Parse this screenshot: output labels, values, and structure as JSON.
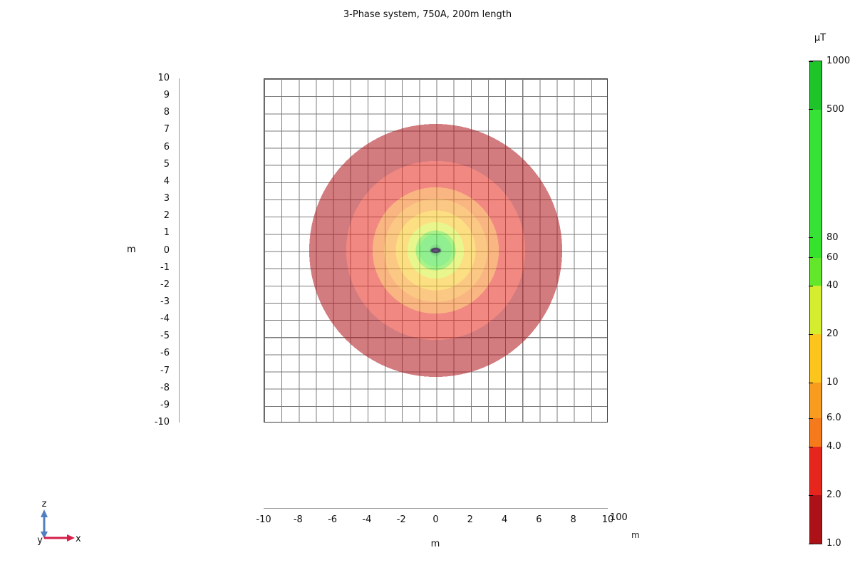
{
  "title": "3-Phase system, 750A, 200m length",
  "axes": {
    "y": {
      "unit": "m",
      "ticks": [
        "10",
        "9",
        "8",
        "7",
        "6",
        "5",
        "4",
        "3",
        "2",
        "1",
        "0",
        "-1",
        "-2",
        "-3",
        "-4",
        "-5",
        "-6",
        "-7",
        "-8",
        "-9",
        "-10"
      ]
    },
    "x": {
      "unit": "m",
      "ticks": [
        "-10",
        "-8",
        "-6",
        "-4",
        "-2",
        "0",
        "2",
        "4",
        "6",
        "8",
        "10"
      ]
    },
    "depth": {
      "label": "100",
      "unit": "m"
    }
  },
  "triad": {
    "x": "x",
    "y": "y",
    "z": "z"
  },
  "colorbar": {
    "unit": "µT",
    "scale": "log",
    "tick_labels": [
      {
        "text": "1000",
        "value": 1000
      },
      {
        "text": "500",
        "value": 500
      },
      {
        "text": "80",
        "value": 80
      },
      {
        "text": "60",
        "value": 60
      },
      {
        "text": "40",
        "value": 40
      },
      {
        "text": "20",
        "value": 20
      },
      {
        "text": "10",
        "value": 10
      },
      {
        "text": "6.0",
        "value": 6
      },
      {
        "text": "4.0",
        "value": 4
      },
      {
        "text": "2.0",
        "value": 2
      },
      {
        "text": "1.0",
        "value": 1
      }
    ],
    "segments": [
      {
        "min": 500,
        "max": 1000,
        "color": "#1fc32a"
      },
      {
        "min": 80,
        "max": 500,
        "color": "#36e236"
      },
      {
        "min": 60,
        "max": 80,
        "color": "#35e32c"
      },
      {
        "min": 40,
        "max": 60,
        "color": "#63e72b"
      },
      {
        "min": 20,
        "max": 40,
        "color": "#d4ee2f"
      },
      {
        "min": 10,
        "max": 20,
        "color": "#fbc51d"
      },
      {
        "min": 6,
        "max": 10,
        "color": "#f79c1e"
      },
      {
        "min": 4,
        "max": 6,
        "color": "#f47a1c"
      },
      {
        "min": 2,
        "max": 4,
        "color": "#e6261c"
      },
      {
        "min": 1,
        "max": 2,
        "color": "#ad1118"
      }
    ]
  },
  "chart_data": {
    "type": "heatmap",
    "title": "3-Phase system, 750A, 200m length",
    "quantity_unit": "µT",
    "color_scale": "log",
    "x_axis": {
      "label": "m",
      "range": [
        -10,
        10
      ],
      "tick_step": 2,
      "ticks": [
        -10,
        -8,
        -6,
        -4,
        -2,
        0,
        2,
        4,
        6,
        8,
        10
      ]
    },
    "z_axis": {
      "label": "m",
      "range": [
        -10,
        10
      ],
      "tick_step": 1
    },
    "depth_axis": {
      "label": "m",
      "value": 100
    },
    "grid_spacing_m": 1,
    "contour_levels_uT": [
      1,
      2,
      4,
      6,
      10,
      20,
      40,
      60,
      80,
      500,
      1000
    ],
    "field_center_m": {
      "x": 0,
      "z": 0
    },
    "conductor_cross_section": {
      "x_m": 0,
      "z_m": 0
    },
    "bands": [
      {
        "range_uT": "500–1000",
        "outer_radius_m": 0.33,
        "fill": "rgba(31,195,42,0.55)",
        "legend_color": "#1fc32a"
      },
      {
        "range_uT": "80–500",
        "outer_radius_m": 0.82,
        "fill": "rgba(54,226,54,0.55)",
        "legend_color": "#36e236"
      },
      {
        "range_uT": "60–80",
        "outer_radius_m": 0.95,
        "fill": "rgba(53,227,44,0.55)",
        "legend_color": "#35e32c"
      },
      {
        "range_uT": "40–60",
        "outer_radius_m": 1.16,
        "fill": "rgba(99,231,43,0.55)",
        "legend_color": "#63e72b"
      },
      {
        "range_uT": "20–40",
        "outer_radius_m": 1.64,
        "fill": "rgba(212,238,47,0.55)",
        "legend_color": "#d4ee2f"
      },
      {
        "range_uT": "10–20",
        "outer_radius_m": 2.32,
        "fill": "rgba(251,197,29,0.55)",
        "legend_color": "#fbc51d"
      },
      {
        "range_uT": "6–10",
        "outer_radius_m": 3.0,
        "fill": "rgba(247,156,30,0.55)",
        "legend_color": "#f79c1e"
      },
      {
        "range_uT": "4–6",
        "outer_radius_m": 3.67,
        "fill": "rgba(244,122,28,0.55)",
        "legend_color": "#f47a1c"
      },
      {
        "range_uT": "2–4",
        "outer_radius_m": 5.2,
        "fill": "rgba(230,38,28,0.55)",
        "legend_color": "#e6261c"
      },
      {
        "range_uT": "1–2",
        "outer_radius_m": 7.35,
        "fill": "rgba(173,17,24,0.55)",
        "legend_color": "#ad1118"
      }
    ]
  }
}
